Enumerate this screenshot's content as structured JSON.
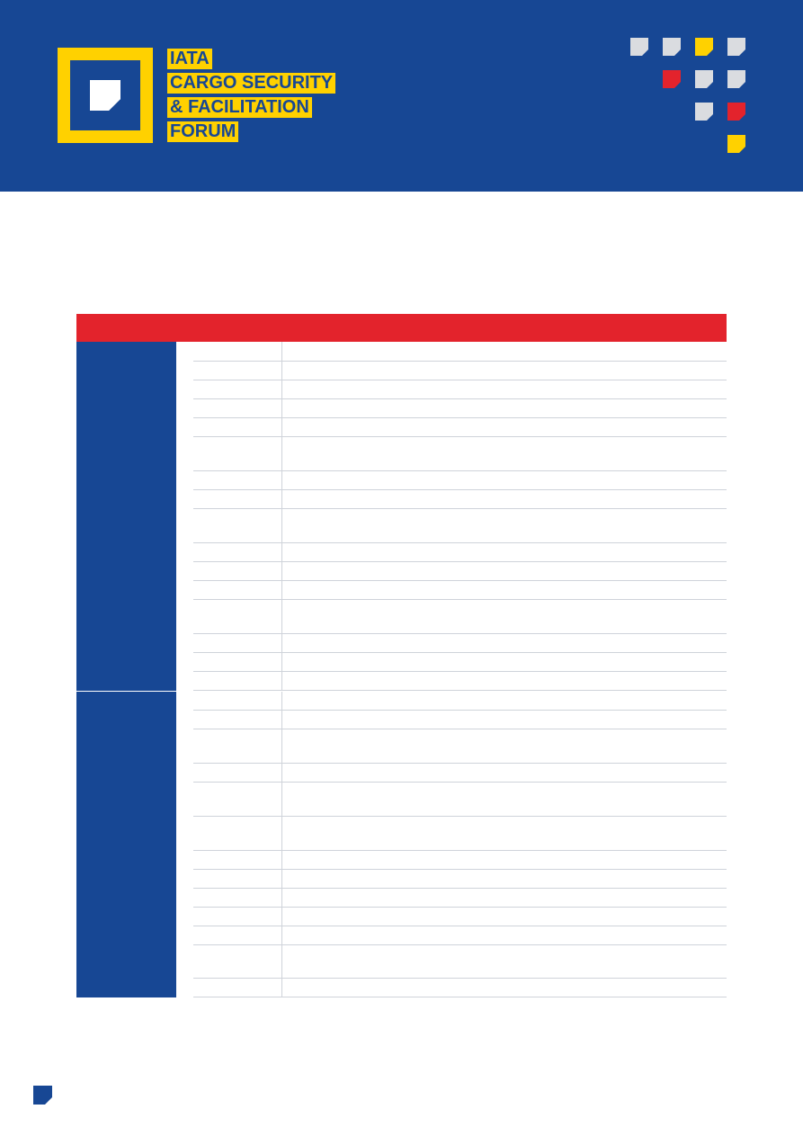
{
  "header": {
    "title_lines": [
      "IATA",
      "CARGO SECURITY",
      "& FACILITATION",
      "FORUM"
    ],
    "logo_icon": "note-square-icon",
    "decor_icon": "folded-square-icon"
  },
  "colors": {
    "brand_blue": "#174794",
    "brand_yellow": "#FFD100",
    "brand_red": "#E3232C",
    "tile_grey": "#DADCE0",
    "rule_grey": "#CFD3DA"
  },
  "decor_squares": [
    {
      "color": "#DADCE0"
    },
    {
      "color": "#DADCE0"
    },
    {
      "color": "#FFD100"
    },
    {
      "color": "#DADCE0"
    },
    {
      "color": "#E3232C"
    },
    {
      "color": "#DADCE0"
    },
    {
      "color": "#DADCE0"
    },
    {
      "color": "#DADCE0"
    },
    {
      "color": "#E3232C"
    },
    {
      "color": "#FFD100"
    }
  ],
  "table": {
    "header_text": "",
    "groups": [
      {
        "label": "",
        "rows": [
          {
            "a": "",
            "b": ""
          },
          {
            "a": "",
            "b": ""
          },
          {
            "a": "",
            "b": ""
          },
          {
            "a": "",
            "b": ""
          },
          {
            "a": "",
            "b": ""
          },
          {
            "a": "",
            "b": ""
          },
          {
            "a": "",
            "b": ""
          },
          {
            "a": "",
            "b": ""
          },
          {
            "a": "",
            "b": ""
          },
          {
            "a": "",
            "b": ""
          },
          {
            "a": "",
            "b": ""
          },
          {
            "a": "",
            "b": ""
          },
          {
            "a": "",
            "b": ""
          },
          {
            "a": "",
            "b": ""
          },
          {
            "a": "",
            "b": ""
          },
          {
            "a": "",
            "b": ""
          }
        ]
      },
      {
        "label": "",
        "rows": [
          {
            "a": "",
            "b": ""
          },
          {
            "a": "",
            "b": ""
          },
          {
            "a": "",
            "b": ""
          },
          {
            "a": "",
            "b": ""
          },
          {
            "a": "",
            "b": ""
          },
          {
            "a": "",
            "b": ""
          },
          {
            "a": "",
            "b": ""
          },
          {
            "a": "",
            "b": ""
          },
          {
            "a": "",
            "b": ""
          },
          {
            "a": "",
            "b": ""
          },
          {
            "a": "",
            "b": ""
          },
          {
            "a": "",
            "b": ""
          },
          {
            "a": "",
            "b": ""
          }
        ]
      }
    ]
  },
  "footer": {
    "mark_icon": "page-corner-icon"
  }
}
